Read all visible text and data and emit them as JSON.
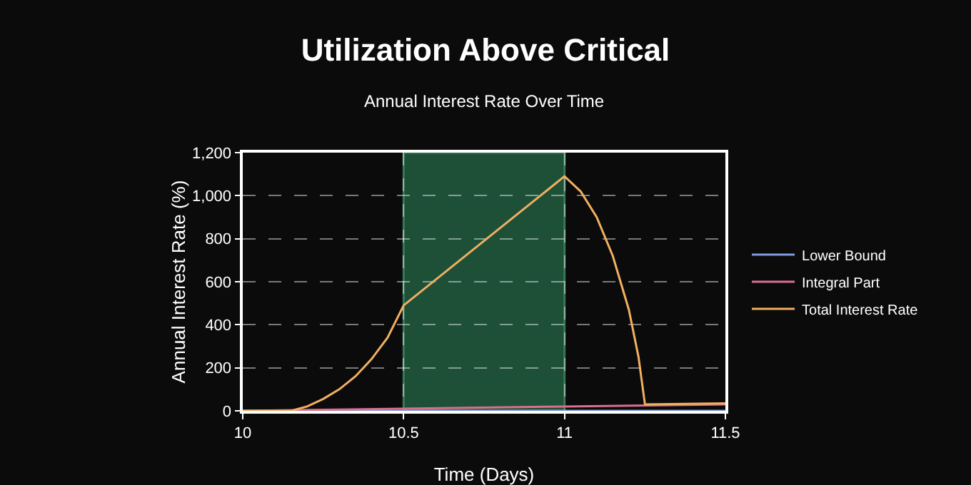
{
  "chart_data": {
    "type": "line",
    "title": "Utilization Above Critical",
    "subtitle": "Annual Interest Rate Over Time",
    "xlabel": "Time (Days)",
    "ylabel": "Annual Interest Rate (%)",
    "xlim": [
      10,
      11.5
    ],
    "xticks": [
      10,
      10.5,
      11,
      11.5
    ],
    "ylim": [
      0,
      1200
    ],
    "yticks": [
      0,
      200,
      400,
      600,
      800,
      {
        "value": 1000,
        "label": "1,000"
      },
      {
        "value": 1200,
        "label": "1,200"
      }
    ],
    "grid": true,
    "line_style": "solid",
    "legend": "right",
    "marker": "none",
    "series": [
      {
        "name": "Lower Bound",
        "color": "#7f9de0",
        "x": [
          10,
          11.5
        ],
        "values": [
          0,
          0
        ]
      },
      {
        "name": "Integral Part",
        "color": "#d9708f",
        "x": [
          10,
          10.5,
          11,
          11.25,
          11.5
        ],
        "values": [
          0,
          10,
          20,
          25,
          30
        ]
      },
      {
        "name": "Total Interest Rate",
        "color": "#f0b060",
        "x": [
          10,
          10.15,
          10.2,
          10.25,
          10.3,
          10.35,
          10.4,
          10.45,
          10.5,
          11,
          11.05,
          11.1,
          11.15,
          11.2,
          11.23,
          11.25,
          11.5
        ],
        "values": [
          0,
          0,
          20,
          55,
          100,
          160,
          240,
          340,
          490,
          1090,
          1020,
          900,
          720,
          470,
          250,
          30,
          35
        ]
      }
    ],
    "bands": [
      {
        "axis": "x",
        "from": 10.5,
        "to": 11,
        "color": "#2e8a5e"
      }
    ]
  }
}
